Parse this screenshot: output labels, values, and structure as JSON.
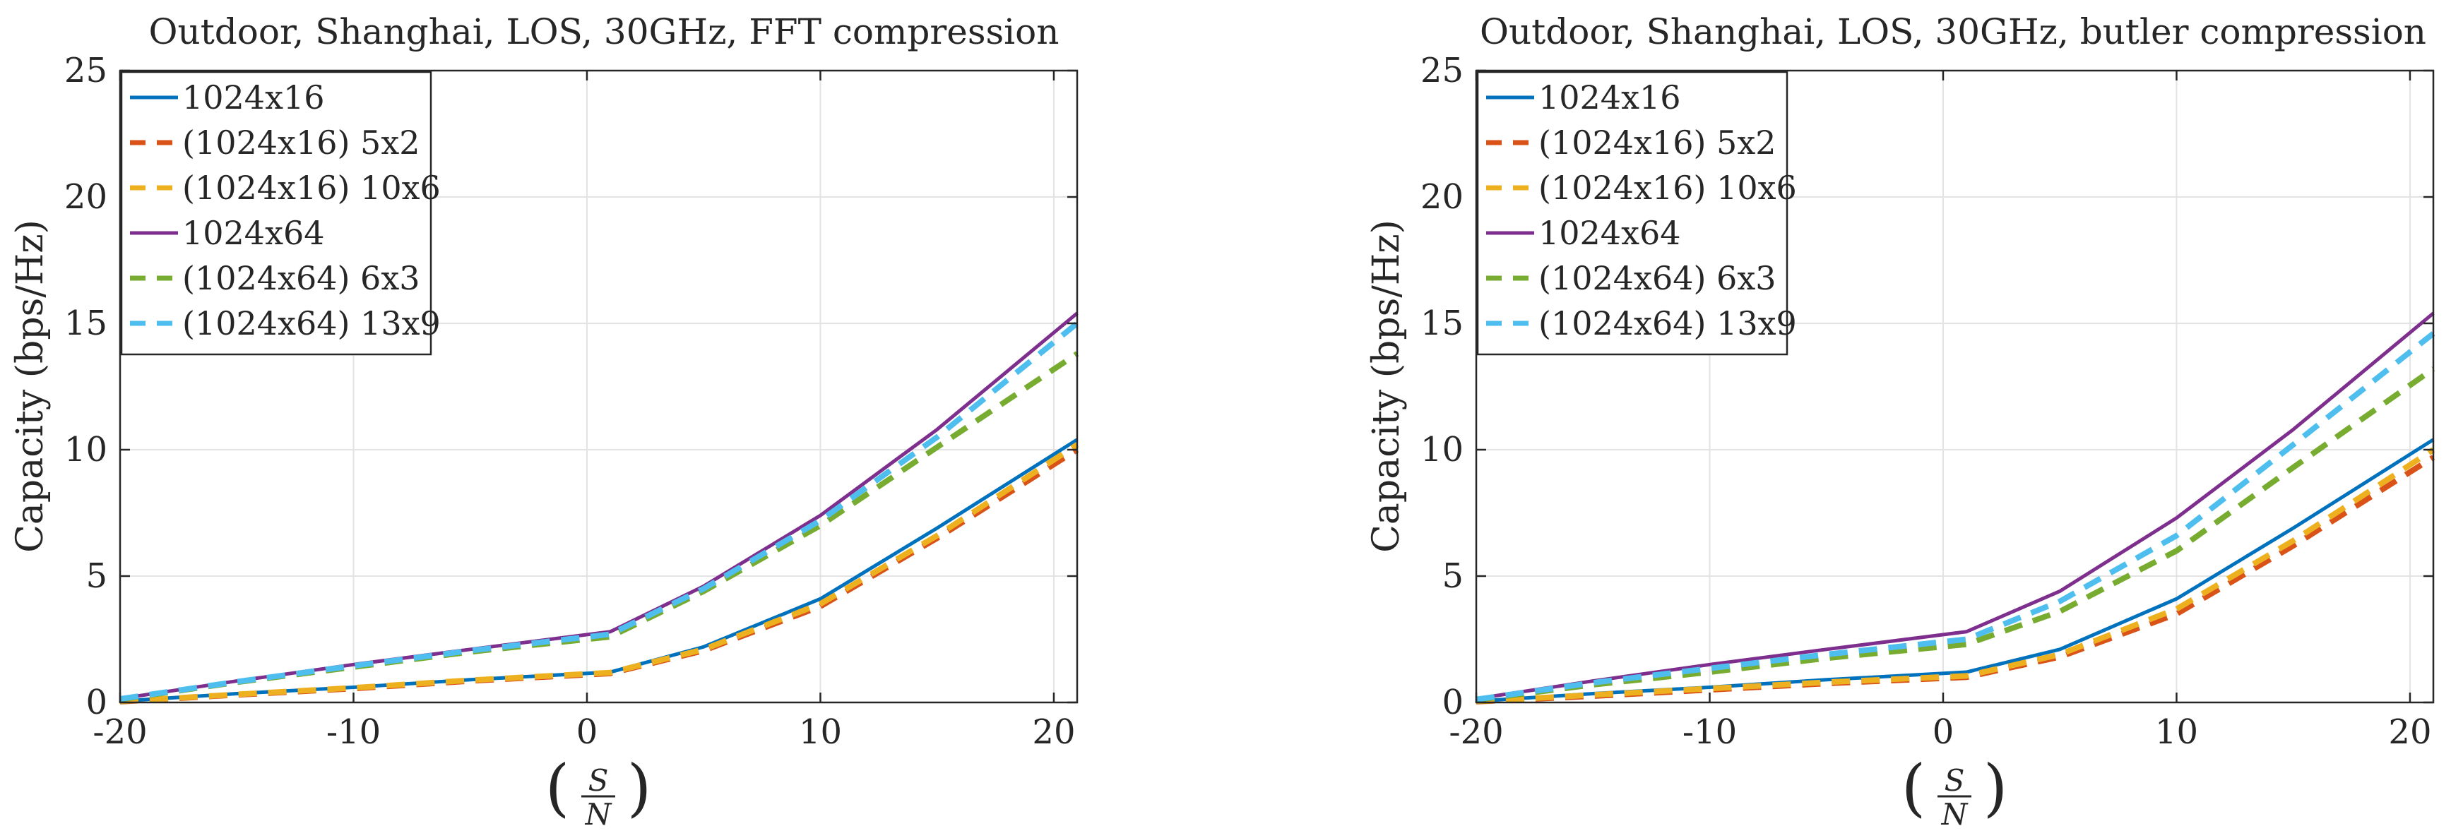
{
  "chart_data": [
    {
      "type": "line",
      "title": "Outdoor, Shanghai, LOS, 30GHz, FFT compression",
      "xlabel": "(S/N)",
      "ylabel": "Capacity (bps/Hz)",
      "xlim": [
        -20,
        21
      ],
      "ylim": [
        0,
        25
      ],
      "xticks": [
        -20,
        -10,
        0,
        10,
        20
      ],
      "yticks": [
        0,
        5,
        10,
        15,
        20,
        25
      ],
      "xtick_labels": [
        "-20",
        "-10",
        "0",
        "10",
        "20"
      ],
      "ytick_labels": [
        "0",
        "5",
        "10",
        "15",
        "20",
        "25"
      ],
      "grid": true,
      "legend_position": "top-left",
      "series": [
        {
          "name": "1024x16",
          "color": "#0072BD",
          "dash": "solid",
          "x": [
            -20,
            -15,
            -10,
            -5,
            1,
            5,
            10,
            15,
            21
          ],
          "y": [
            0.05,
            0.35,
            0.6,
            0.9,
            1.2,
            2.2,
            4.1,
            6.9,
            10.4
          ]
        },
        {
          "name": "(1024x16) 5x2",
          "color": "#D95319",
          "dash": "dashed",
          "x": [
            -20,
            -15,
            -10,
            -5,
            1,
            5,
            10,
            15,
            21
          ],
          "y": [
            0.03,
            0.3,
            0.55,
            0.85,
            1.15,
            2.05,
            3.8,
            6.5,
            10.0
          ]
        },
        {
          "name": "(1024x16) 10x6",
          "color": "#EDB120",
          "dash": "dashed",
          "x": [
            -20,
            -15,
            -10,
            -5,
            1,
            5,
            10,
            15,
            21
          ],
          "y": [
            0.04,
            0.32,
            0.58,
            0.88,
            1.18,
            2.1,
            3.9,
            6.6,
            10.2
          ]
        },
        {
          "name": "1024x64",
          "color": "#7E2F8E",
          "dash": "solid",
          "x": [
            -20,
            -15,
            -10,
            -5,
            1,
            5,
            10,
            15,
            21
          ],
          "y": [
            0.15,
            0.85,
            1.5,
            2.1,
            2.8,
            4.6,
            7.4,
            10.8,
            15.4
          ]
        },
        {
          "name": "(1024x64) 6x3",
          "color": "#77AC30",
          "dash": "dashed",
          "x": [
            -20,
            -15,
            -10,
            -5,
            1,
            5,
            10,
            15,
            21
          ],
          "y": [
            0.12,
            0.8,
            1.4,
            2.0,
            2.6,
            4.4,
            7.0,
            10.1,
            13.8
          ]
        },
        {
          "name": "(1024x64) 13x9",
          "color": "#4DBEEE",
          "dash": "dashed",
          "x": [
            -20,
            -15,
            -10,
            -5,
            1,
            5,
            10,
            15,
            21
          ],
          "y": [
            0.14,
            0.82,
            1.45,
            2.05,
            2.7,
            4.5,
            7.2,
            10.5,
            15.0
          ]
        }
      ]
    },
    {
      "type": "line",
      "title": "Outdoor, Shanghai, LOS, 30GHz, butler compression",
      "xlabel": "(S/N)",
      "ylabel": "Capacity (bps/Hz)",
      "xlim": [
        -20,
        21
      ],
      "ylim": [
        0,
        25
      ],
      "xticks": [
        -20,
        -10,
        0,
        10,
        20
      ],
      "yticks": [
        0,
        5,
        10,
        15,
        20,
        25
      ],
      "xtick_labels": [
        "-20",
        "-10",
        "0",
        "10",
        "20"
      ],
      "ytick_labels": [
        "0",
        "5",
        "10",
        "15",
        "20",
        "25"
      ],
      "grid": true,
      "legend_position": "top-left",
      "series": [
        {
          "name": "1024x16",
          "color": "#0072BD",
          "dash": "solid",
          "x": [
            -20,
            -15,
            -10,
            -5,
            1,
            5,
            10,
            15,
            21
          ],
          "y": [
            0.05,
            0.35,
            0.6,
            0.9,
            1.2,
            2.1,
            4.1,
            6.9,
            10.4
          ]
        },
        {
          "name": "(1024x16) 5x2",
          "color": "#D95319",
          "dash": "dashed",
          "x": [
            -20,
            -15,
            -10,
            -5,
            1,
            5,
            10,
            15,
            21
          ],
          "y": [
            0.03,
            0.25,
            0.5,
            0.75,
            1.0,
            1.8,
            3.5,
            6.2,
            9.7
          ]
        },
        {
          "name": "(1024x16) 10x6",
          "color": "#EDB120",
          "dash": "dashed",
          "x": [
            -20,
            -15,
            -10,
            -5,
            1,
            5,
            10,
            15,
            21
          ],
          "y": [
            0.04,
            0.3,
            0.55,
            0.8,
            1.05,
            1.9,
            3.7,
            6.4,
            10.0
          ]
        },
        {
          "name": "1024x64",
          "color": "#7E2F8E",
          "dash": "solid",
          "x": [
            -20,
            -15,
            -10,
            -5,
            1,
            5,
            10,
            15,
            21
          ],
          "y": [
            0.15,
            0.85,
            1.5,
            2.1,
            2.8,
            4.4,
            7.3,
            10.8,
            15.4
          ]
        },
        {
          "name": "(1024x64) 6x3",
          "color": "#77AC30",
          "dash": "dashed",
          "x": [
            -20,
            -15,
            -10,
            -5,
            1,
            5,
            10,
            15,
            21
          ],
          "y": [
            0.1,
            0.7,
            1.2,
            1.75,
            2.3,
            3.6,
            6.0,
            9.3,
            13.2
          ]
        },
        {
          "name": "(1024x64) 13x9",
          "color": "#4DBEEE",
          "dash": "dashed",
          "x": [
            -20,
            -15,
            -10,
            -5,
            1,
            5,
            10,
            15,
            21
          ],
          "y": [
            0.12,
            0.78,
            1.35,
            1.9,
            2.5,
            4.0,
            6.6,
            10.2,
            14.6
          ]
        }
      ]
    }
  ]
}
